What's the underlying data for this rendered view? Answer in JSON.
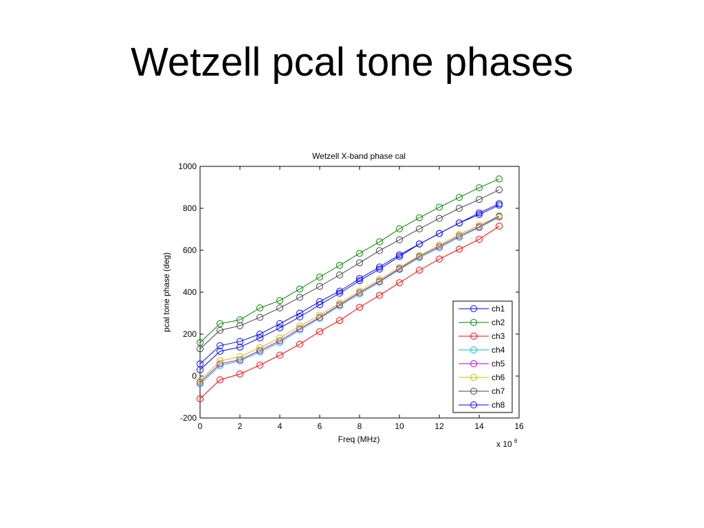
{
  "slide": {
    "title": "Wetzell pcal tone phases"
  },
  "chart_data": {
    "type": "line",
    "title": "Wetzell X-band phase cal",
    "xlabel": "Freq (MHz)",
    "ylabel": "pcal tone phase (deg)",
    "x_multiplier_label": "x 10",
    "x_multiplier_exp": "6",
    "xlim": [
      0,
      16
    ],
    "ylim": [
      -200,
      1000
    ],
    "xticks": [
      0,
      2,
      4,
      6,
      8,
      10,
      12,
      14,
      16
    ],
    "yticks": [
      -200,
      0,
      200,
      400,
      600,
      800,
      1000
    ],
    "grid": false,
    "legend_position": "bottom-right",
    "marker": "circle",
    "x": [
      0,
      1,
      2,
      3,
      4,
      5,
      6,
      7,
      8,
      9,
      10,
      11,
      12,
      13,
      14,
      15
    ],
    "series": [
      {
        "name": "ch1",
        "color": "#0000ff",
        "values": [
          58,
          145,
          165,
          200,
          250,
          300,
          355,
          405,
          465,
          520,
          578,
          630,
          680,
          730,
          778,
          822
        ]
      },
      {
        "name": "ch2",
        "color": "#008000",
        "values": [
          160,
          250,
          268,
          325,
          360,
          415,
          472,
          528,
          585,
          640,
          702,
          755,
          805,
          852,
          898,
          940
        ]
      },
      {
        "name": "ch3",
        "color": "#ff0000",
        "values": [
          -108,
          -18,
          10,
          52,
          100,
          152,
          212,
          265,
          328,
          385,
          445,
          505,
          558,
          605,
          652,
          715
        ]
      },
      {
        "name": "ch4",
        "color": "#00bfbf",
        "values": [
          -38,
          50,
          72,
          115,
          160,
          220,
          275,
          335,
          392,
          448,
          508,
          565,
          612,
          662,
          708,
          758
        ]
      },
      {
        "name": "ch5",
        "color": "#bf00bf",
        "values": [
          -30,
          58,
          78,
          122,
          168,
          226,
          280,
          340,
          398,
          452,
          512,
          570,
          618,
          668,
          712,
          762
        ]
      },
      {
        "name": "ch6",
        "color": "#bfbf00",
        "values": [
          -22,
          72,
          92,
          135,
          182,
          238,
          290,
          348,
          405,
          460,
          518,
          575,
          625,
          675,
          720,
          765
        ]
      },
      {
        "name": "ch7",
        "color": "#404040",
        "values": [
          130,
          218,
          240,
          280,
          325,
          375,
          428,
          482,
          540,
          598,
          650,
          702,
          752,
          800,
          842,
          888
        ]
      },
      {
        "name": "ch8",
        "color": "#0000ff",
        "values": [
          30,
          118,
          138,
          182,
          230,
          282,
          340,
          395,
          455,
          510,
          570,
          630,
          680,
          730,
          770,
          815
        ]
      }
    ]
  }
}
